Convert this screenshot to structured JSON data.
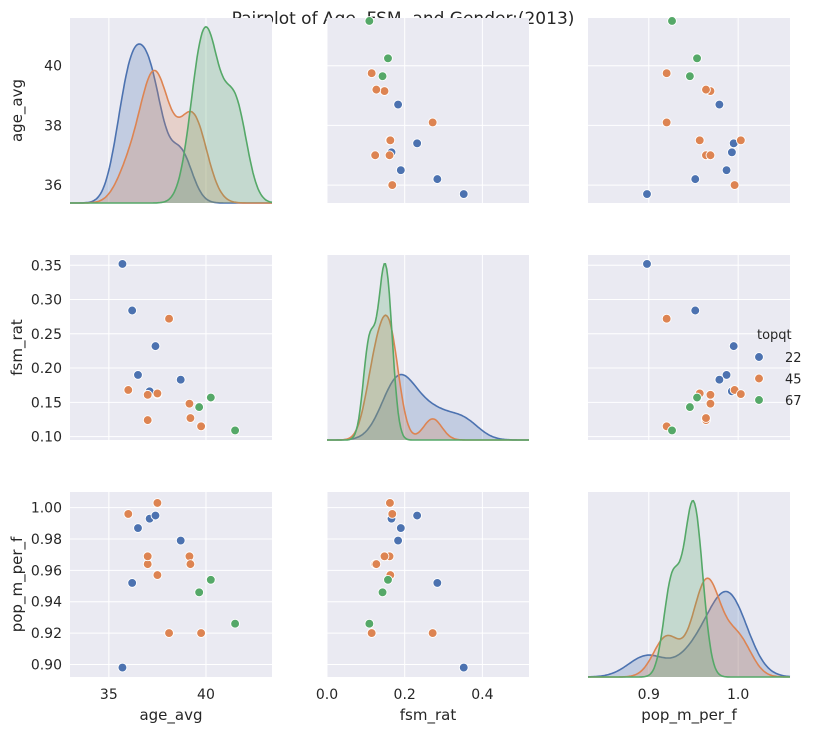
{
  "chart_data": {
    "type": "scatter",
    "subtype": "pairplot",
    "title": "Pairplot of Age, FSM, and Gender:(2013)",
    "variables": [
      "age_avg",
      "fsm_rat",
      "pop_m_per_f"
    ],
    "hue": "topqt",
    "legend": {
      "title": "topqt",
      "entries": [
        "22",
        "45",
        "67"
      ],
      "placement": "right"
    },
    "colors": {
      "22": "#4c72b0",
      "45": "#dd8452",
      "67": "#55a868"
    },
    "background": "#eaeaf2",
    "grid": true,
    "diagonal": "kde",
    "axes": {
      "age_avg": {
        "range": [
          33.0,
          43.4
        ],
        "ticks": [
          35,
          40
        ],
        "tick_labels": [
          "35",
          "40"
        ],
        "row_range": [
          35.4,
          41.6
        ],
        "row_ticks": [
          36,
          38,
          40
        ],
        "row_tick_labels": [
          "36",
          "38",
          "40"
        ]
      },
      "fsm_rat": {
        "range": [
          0.0,
          0.52
        ],
        "ticks": [
          0.0,
          0.2,
          0.4
        ],
        "tick_labels": [
          "0.0",
          "0.2",
          "0.4"
        ],
        "row_range": [
          0.095,
          0.365
        ],
        "row_ticks": [
          0.1,
          0.15,
          0.2,
          0.25,
          0.3,
          0.35
        ],
        "row_tick_labels": [
          "0.10",
          "0.15",
          "0.20",
          "0.25",
          "0.30",
          "0.35"
        ]
      },
      "pop_m_per_f": {
        "range": [
          0.832,
          1.058
        ],
        "ticks": [
          0.9,
          1.0
        ],
        "tick_labels": [
          "0.9",
          "1.0"
        ],
        "row_range": [
          0.892,
          1.01
        ],
        "row_ticks": [
          0.9,
          0.92,
          0.94,
          0.96,
          0.98,
          1.0
        ],
        "row_tick_labels": [
          "0.90",
          "0.92",
          "0.94",
          "0.96",
          "0.98",
          "1.00"
        ]
      }
    },
    "points": [
      {
        "topqt": "22",
        "age_avg": 35.7,
        "fsm_rat": 0.352,
        "pop_m_per_f": 0.898
      },
      {
        "topqt": "22",
        "age_avg": 36.2,
        "fsm_rat": 0.284,
        "pop_m_per_f": 0.952
      },
      {
        "topqt": "22",
        "age_avg": 36.5,
        "fsm_rat": 0.19,
        "pop_m_per_f": 0.987
      },
      {
        "topqt": "22",
        "age_avg": 37.1,
        "fsm_rat": 0.166,
        "pop_m_per_f": 0.993
      },
      {
        "topqt": "22",
        "age_avg": 37.4,
        "fsm_rat": 0.232,
        "pop_m_per_f": 0.995
      },
      {
        "topqt": "22",
        "age_avg": 38.7,
        "fsm_rat": 0.183,
        "pop_m_per_f": 0.979
      },
      {
        "topqt": "45",
        "age_avg": 36.0,
        "fsm_rat": 0.168,
        "pop_m_per_f": 0.996
      },
      {
        "topqt": "45",
        "age_avg": 37.0,
        "fsm_rat": 0.124,
        "pop_m_per_f": 0.964
      },
      {
        "topqt": "45",
        "age_avg": 37.0,
        "fsm_rat": 0.161,
        "pop_m_per_f": 0.969
      },
      {
        "topqt": "45",
        "age_avg": 37.5,
        "fsm_rat": 0.162,
        "pop_m_per_f": 1.003
      },
      {
        "topqt": "45",
        "age_avg": 37.5,
        "fsm_rat": 0.163,
        "pop_m_per_f": 0.957
      },
      {
        "topqt": "45",
        "age_avg": 38.1,
        "fsm_rat": 0.272,
        "pop_m_per_f": 0.92
      },
      {
        "topqt": "45",
        "age_avg": 39.15,
        "fsm_rat": 0.148,
        "pop_m_per_f": 0.969
      },
      {
        "topqt": "45",
        "age_avg": 39.2,
        "fsm_rat": 0.127,
        "pop_m_per_f": 0.964
      },
      {
        "topqt": "45",
        "age_avg": 39.75,
        "fsm_rat": 0.115,
        "pop_m_per_f": 0.92
      },
      {
        "topqt": "67",
        "age_avg": 39.65,
        "fsm_rat": 0.143,
        "pop_m_per_f": 0.946
      },
      {
        "topqt": "67",
        "age_avg": 40.25,
        "fsm_rat": 0.157,
        "pop_m_per_f": 0.954
      },
      {
        "topqt": "67",
        "age_avg": 41.5,
        "fsm_rat": 0.109,
        "pop_m_per_f": 0.926
      }
    ]
  }
}
